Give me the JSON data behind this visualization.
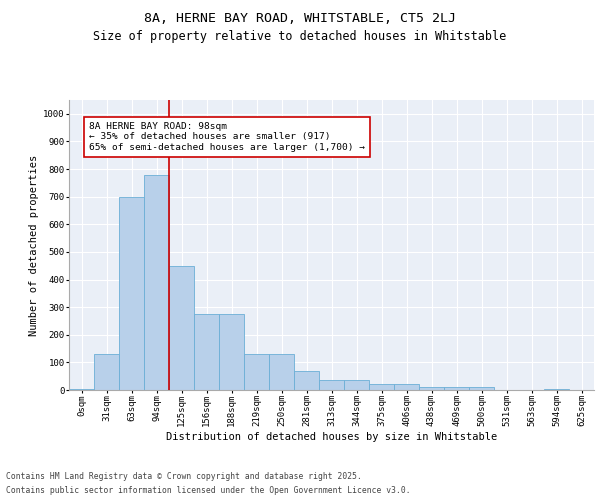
{
  "title1": "8A, HERNE BAY ROAD, WHITSTABLE, CT5 2LJ",
  "title2": "Size of property relative to detached houses in Whitstable",
  "xlabel": "Distribution of detached houses by size in Whitstable",
  "ylabel": "Number of detached properties",
  "categories": [
    "0sqm",
    "31sqm",
    "63sqm",
    "94sqm",
    "125sqm",
    "156sqm",
    "188sqm",
    "219sqm",
    "250sqm",
    "281sqm",
    "313sqm",
    "344sqm",
    "375sqm",
    "406sqm",
    "438sqm",
    "469sqm",
    "500sqm",
    "531sqm",
    "563sqm",
    "594sqm",
    "625sqm"
  ],
  "values": [
    5,
    130,
    700,
    780,
    450,
    275,
    275,
    130,
    130,
    70,
    38,
    35,
    20,
    20,
    10,
    10,
    10,
    0,
    0,
    5,
    0
  ],
  "bar_color": "#b8d0ea",
  "bar_edge_color": "#6baed6",
  "vline_x_idx": 3,
  "vline_color": "#cc0000",
  "annotation_text": "8A HERNE BAY ROAD: 98sqm\n← 35% of detached houses are smaller (917)\n65% of semi-detached houses are larger (1,700) →",
  "annotation_box_color": "#ffffff",
  "annotation_box_edge": "#cc0000",
  "ylim": [
    0,
    1050
  ],
  "yticks": [
    0,
    100,
    200,
    300,
    400,
    500,
    600,
    700,
    800,
    900,
    1000
  ],
  "bg_color": "#eaeff7",
  "footer1": "Contains HM Land Registry data © Crown copyright and database right 2025.",
  "footer2": "Contains public sector information licensed under the Open Government Licence v3.0.",
  "title_fontsize": 9.5,
  "subtitle_fontsize": 8.5,
  "axis_label_fontsize": 7.5,
  "tick_fontsize": 6.5,
  "annotation_fontsize": 6.8,
  "footer_fontsize": 5.8
}
